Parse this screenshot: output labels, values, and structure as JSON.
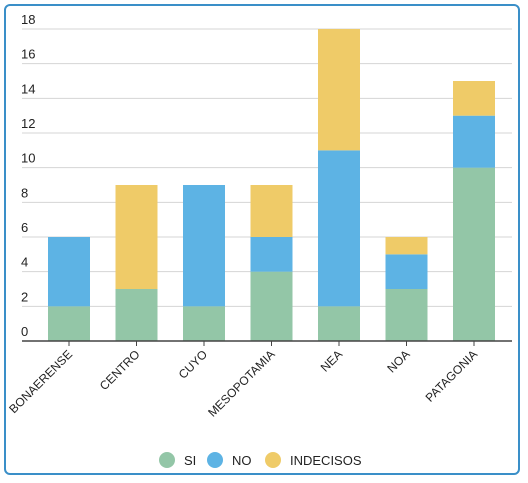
{
  "chart_data": {
    "type": "bar",
    "stacked": true,
    "categories": [
      "BONAERENSE",
      "CENTRO",
      "CUYO",
      "MESOPOTAMIA",
      "NEA",
      "NOA",
      "PATAGONIA"
    ],
    "series": [
      {
        "name": "SI",
        "color": "#93c6a7",
        "values": [
          2,
          3,
          2,
          4,
          2,
          3,
          10
        ]
      },
      {
        "name": "NO",
        "color": "#5db3e4",
        "values": [
          4,
          0,
          7,
          2,
          9,
          2,
          3
        ]
      },
      {
        "name": "INDECISOS",
        "color": "#efcb68",
        "values": [
          0,
          6,
          0,
          3,
          7,
          1,
          2
        ]
      }
    ],
    "ylim": [
      0,
      18
    ],
    "yticks": [
      0,
      2,
      4,
      6,
      8,
      10,
      12,
      14,
      16,
      18
    ],
    "grid": true,
    "legend": "bottom"
  }
}
